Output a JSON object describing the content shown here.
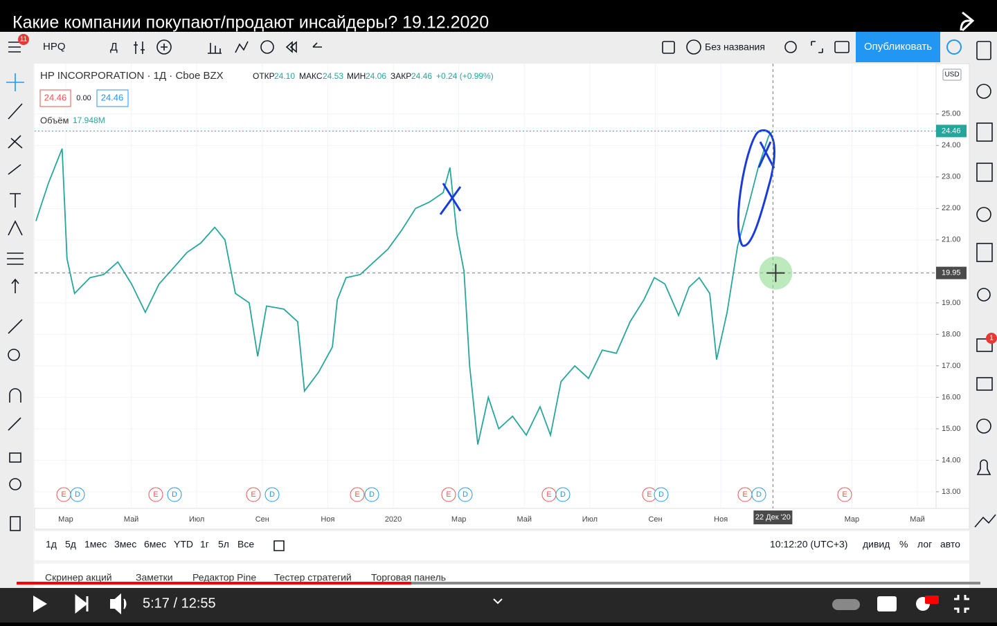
{
  "video": {
    "title": "Какие компании покупают/продают инсайдеры? 19.12.2020",
    "time": "5:17 / 12:55",
    "notification_badge": "11"
  },
  "toolbar": {
    "symbol": "HPQ",
    "interval": "Д",
    "layout_name": "Без названия",
    "publish": "Опубликовать"
  },
  "legend": {
    "title": "HP INCORPORATION · 1Д · Cboe BZX",
    "open_label": "ОТКР",
    "open": "24.10",
    "high_label": "МАКС",
    "high": "24.53",
    "low_label": "МИН",
    "low": "24.06",
    "close_label": "ЗАКР",
    "close": "24.46",
    "change": "+0.24 (+0.99%)",
    "bid": "24.46",
    "spread": "0.00",
    "ask": "24.46",
    "volume_label": "Объём",
    "volume": "17.948M"
  },
  "chart_data": {
    "type": "line",
    "color": "#26a69a",
    "currency": "USD",
    "x": [
      1.09,
      1.47,
      1.89,
      2.04,
      2.27,
      2.74,
      3.16,
      3.59,
      4.01,
      4.43,
      4.85,
      5.28,
      5.7,
      6.12,
      6.55,
      6.86,
      7.18,
      7.6,
      7.86,
      8.13,
      8.66,
      9.08,
      9.29,
      9.72,
      10.14,
      10.29,
      10.56,
      10.99,
      11.41,
      11.83,
      12.25,
      12.68,
      13.1,
      13.52,
      13.73,
      13.94,
      14.16,
      14.33,
      14.58,
      14.9,
      15.22,
      15.64,
      16.06,
      16.48,
      16.8,
      17.12,
      17.54,
      17.96,
      18.38,
      18.81,
      19.23,
      19.65,
      19.97,
      20.29,
      20.71,
      21.03,
      21.34,
      21.66,
      21.87,
      22.19,
      22.51,
      22.82,
      23.14,
      23.46,
      23.59
    ],
    "values": [
      21.6,
      22.8,
      23.9,
      20.4,
      19.3,
      19.8,
      19.9,
      20.3,
      19.6,
      18.7,
      19.6,
      20.1,
      20.6,
      20.9,
      21.4,
      21.0,
      19.3,
      19.0,
      17.3,
      18.9,
      18.8,
      18.4,
      16.2,
      16.8,
      17.6,
      19.1,
      19.8,
      19.9,
      20.3,
      20.7,
      21.3,
      22.0,
      22.2,
      22.5,
      23.3,
      21.2,
      20.0,
      17.0,
      14.5,
      16.0,
      15.0,
      15.4,
      14.8,
      15.7,
      14.8,
      16.5,
      17.0,
      16.6,
      17.5,
      17.4,
      18.4,
      19.1,
      19.8,
      19.6,
      18.6,
      19.5,
      19.8,
      19.3,
      17.2,
      18.7,
      20.8,
      22.0,
      23.3,
      24.3,
      24.46
    ],
    "xlim": [
      1.05,
      28.57
    ],
    "ylim": [
      12.47,
      26.6
    ],
    "xticks": [
      {
        "value": 2,
        "label": "Мар"
      },
      {
        "value": 4,
        "label": "Май"
      },
      {
        "value": 6,
        "label": "Июл"
      },
      {
        "value": 8,
        "label": "Сен"
      },
      {
        "value": 10,
        "label": "Ноя"
      },
      {
        "value": 12,
        "label": "2020"
      },
      {
        "value": 14,
        "label": "Мар"
      },
      {
        "value": 16,
        "label": "Май"
      },
      {
        "value": 18,
        "label": "Июл"
      },
      {
        "value": 20,
        "label": "Сен"
      },
      {
        "value": 22,
        "label": "Ноя"
      },
      {
        "value": 26,
        "label": "Мар"
      },
      {
        "value": 28,
        "label": "Май"
      }
    ],
    "yticks": [
      {
        "value": 13,
        "label": "13.00"
      },
      {
        "value": 14,
        "label": "14.00"
      },
      {
        "value": 15,
        "label": "15.00"
      },
      {
        "value": 16,
        "label": "16.00"
      },
      {
        "value": 17,
        "label": "17.00"
      },
      {
        "value": 18,
        "label": "18.00"
      },
      {
        "value": 19,
        "label": "19.00"
      },
      {
        "value": 20,
        "label": "20.00"
      },
      {
        "value": 21,
        "label": "21.00"
      },
      {
        "value": 22,
        "label": "22.00"
      },
      {
        "value": 23,
        "label": "23.00"
      },
      {
        "value": 24,
        "label": "24.00"
      },
      {
        "value": 25,
        "label": "25.00"
      }
    ],
    "last_price": {
      "value": 24.46,
      "label": "24.46"
    },
    "crosshair_price": {
      "value": 19.95,
      "label": "19.95"
    },
    "crosshair_date": {
      "value": 23.59,
      "label": "22 Дек '20"
    },
    "grid": true,
    "earnings_label": "E",
    "dividend_label": "D"
  },
  "range_buttons": [
    "1д",
    "5д",
    "1мес",
    "3мес",
    "6мес",
    "YTD",
    "1г",
    "5л",
    "Все"
  ],
  "status": {
    "clock": "10:12:20 (UTC+3)",
    "dividends": "дивид",
    "percent": "%",
    "log": "лог",
    "auto": "авто"
  },
  "tabs": [
    "Скринер акций",
    "Заметки",
    "Редактор Pine",
    "Тестер стратегий",
    "Торговая панель"
  ],
  "sidebar_badge": "1"
}
